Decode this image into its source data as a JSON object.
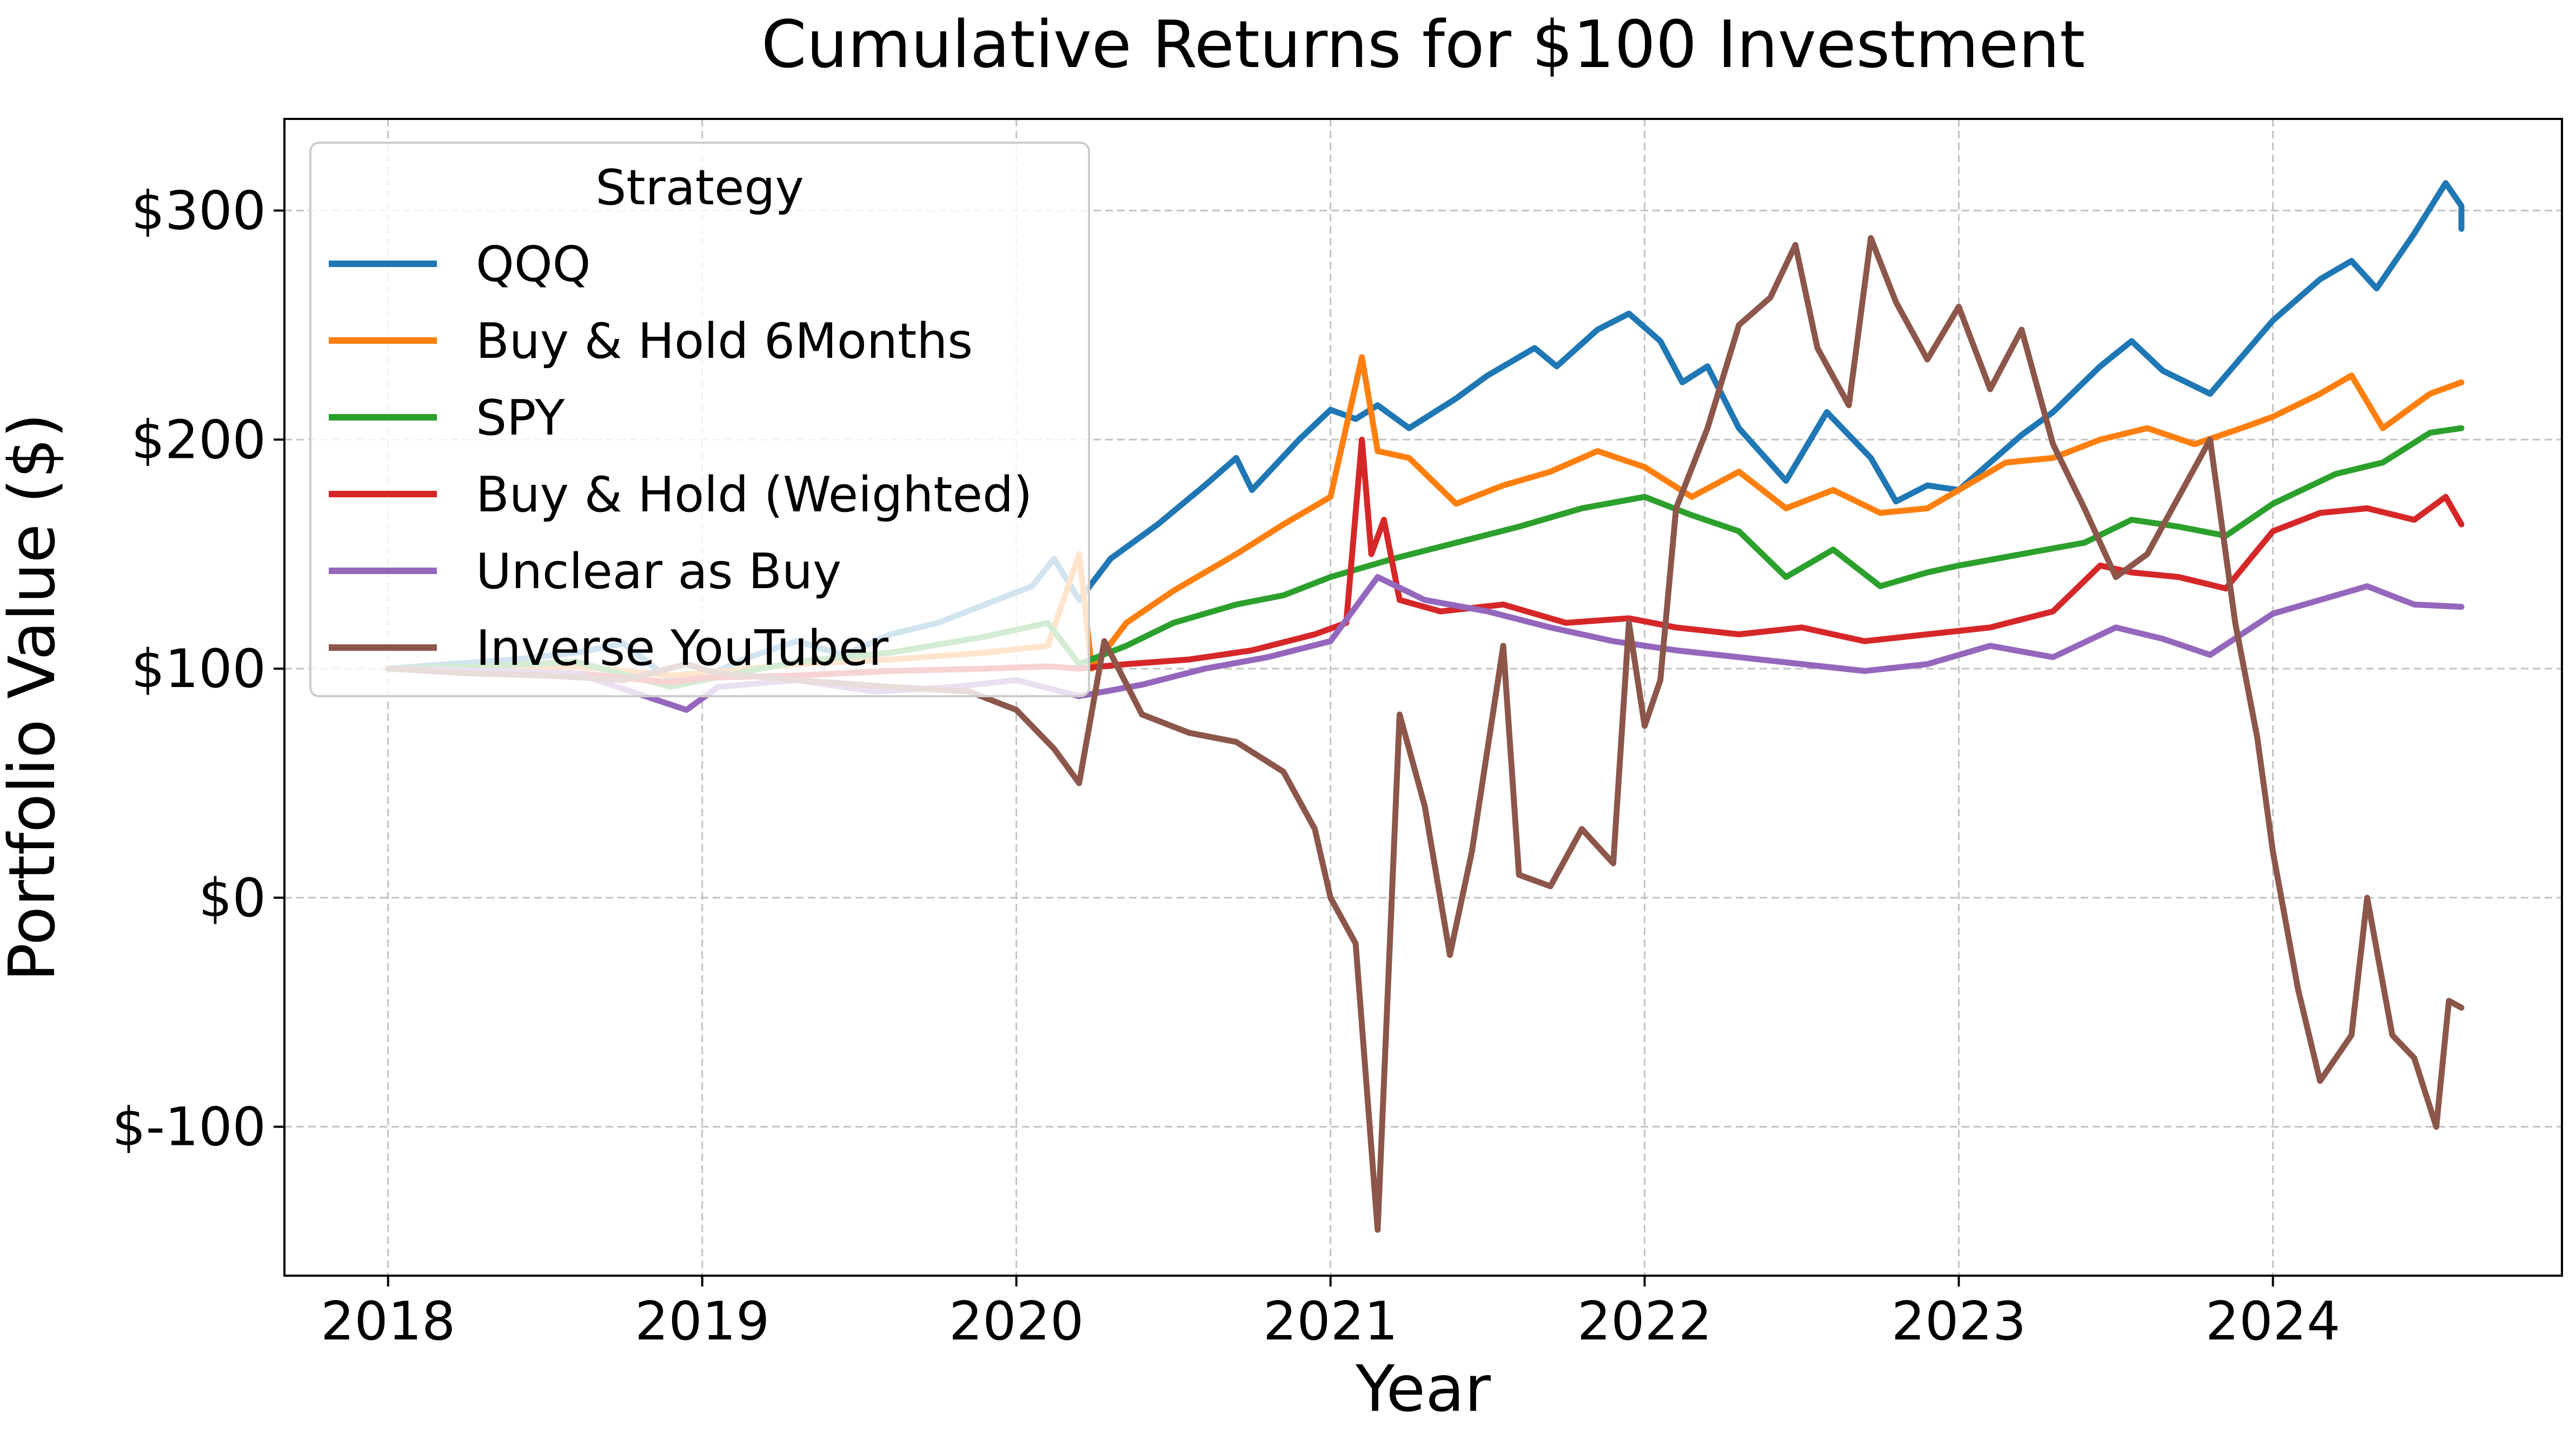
{
  "chart_data": {
    "type": "line",
    "title": "Cumulative Returns for $100 Investment",
    "xlabel": "Year",
    "ylabel": "Portfolio Value ($)",
    "xlim": [
      2017.67,
      2024.92
    ],
    "ylim": [
      -165,
      340
    ],
    "x_ticks": [
      2018,
      2019,
      2020,
      2021,
      2022,
      2023,
      2024
    ],
    "x_tick_labels": [
      "2018",
      "2019",
      "2020",
      "2021",
      "2022",
      "2023",
      "2024"
    ],
    "y_ticks": [
      -100,
      0,
      100,
      200,
      300
    ],
    "y_tick_labels": [
      "$-100",
      "$0",
      "$100",
      "$200",
      "$300"
    ],
    "grid": true,
    "legend": {
      "title": "Strategy",
      "placement": "top-left"
    },
    "series": [
      {
        "name": "QQQ",
        "color": "#1f77b4",
        "points": [
          [
            2018.0,
            100
          ],
          [
            2018.2,
            102
          ],
          [
            2018.4,
            104
          ],
          [
            2018.6,
            107
          ],
          [
            2018.75,
            111
          ],
          [
            2018.9,
            95
          ],
          [
            2019.0,
            96
          ],
          [
            2019.15,
            105
          ],
          [
            2019.3,
            112
          ],
          [
            2019.45,
            106
          ],
          [
            2019.6,
            115
          ],
          [
            2019.75,
            120
          ],
          [
            2019.9,
            128
          ],
          [
            2020.05,
            136
          ],
          [
            2020.12,
            148
          ],
          [
            2020.2,
            130
          ],
          [
            2020.3,
            148
          ],
          [
            2020.45,
            163
          ],
          [
            2020.6,
            180
          ],
          [
            2020.7,
            192
          ],
          [
            2020.75,
            178
          ],
          [
            2020.9,
            200
          ],
          [
            2021.0,
            213
          ],
          [
            2021.08,
            209
          ],
          [
            2021.15,
            215
          ],
          [
            2021.25,
            205
          ],
          [
            2021.4,
            218
          ],
          [
            2021.5,
            228
          ],
          [
            2021.65,
            240
          ],
          [
            2021.72,
            232
          ],
          [
            2021.85,
            248
          ],
          [
            2021.95,
            255
          ],
          [
            2022.05,
            243
          ],
          [
            2022.12,
            225
          ],
          [
            2022.2,
            232
          ],
          [
            2022.3,
            205
          ],
          [
            2022.45,
            182
          ],
          [
            2022.58,
            212
          ],
          [
            2022.72,
            192
          ],
          [
            2022.8,
            173
          ],
          [
            2022.9,
            180
          ],
          [
            2023.0,
            178
          ],
          [
            2023.1,
            190
          ],
          [
            2023.2,
            202
          ],
          [
            2023.3,
            212
          ],
          [
            2023.45,
            232
          ],
          [
            2023.55,
            243
          ],
          [
            2023.65,
            230
          ],
          [
            2023.8,
            220
          ],
          [
            2023.9,
            236
          ],
          [
            2024.0,
            252
          ],
          [
            2024.15,
            270
          ],
          [
            2024.25,
            278
          ],
          [
            2024.33,
            266
          ],
          [
            2024.45,
            290
          ],
          [
            2024.55,
            312
          ],
          [
            2024.6,
            302
          ],
          [
            2024.6,
            292
          ]
        ]
      },
      {
        "name": "Buy & Hold 6Months",
        "color": "#ff7f0e",
        "points": [
          [
            2018.0,
            100
          ],
          [
            2018.3,
            100
          ],
          [
            2018.6,
            101
          ],
          [
            2018.9,
            97
          ],
          [
            2019.0,
            98
          ],
          [
            2019.3,
            102
          ],
          [
            2019.6,
            104
          ],
          [
            2019.9,
            107
          ],
          [
            2020.1,
            110
          ],
          [
            2020.2,
            150
          ],
          [
            2020.24,
            100
          ],
          [
            2020.35,
            120
          ],
          [
            2020.5,
            134
          ],
          [
            2020.7,
            150
          ],
          [
            2020.85,
            163
          ],
          [
            2021.0,
            175
          ],
          [
            2021.1,
            236
          ],
          [
            2021.15,
            195
          ],
          [
            2021.25,
            192
          ],
          [
            2021.4,
            172
          ],
          [
            2021.55,
            180
          ],
          [
            2021.7,
            186
          ],
          [
            2021.85,
            195
          ],
          [
            2022.0,
            188
          ],
          [
            2022.15,
            175
          ],
          [
            2022.3,
            186
          ],
          [
            2022.45,
            170
          ],
          [
            2022.6,
            178
          ],
          [
            2022.75,
            168
          ],
          [
            2022.9,
            170
          ],
          [
            2023.0,
            178
          ],
          [
            2023.15,
            190
          ],
          [
            2023.3,
            192
          ],
          [
            2023.45,
            200
          ],
          [
            2023.6,
            205
          ],
          [
            2023.75,
            198
          ],
          [
            2023.9,
            205
          ],
          [
            2024.0,
            210
          ],
          [
            2024.15,
            220
          ],
          [
            2024.25,
            228
          ],
          [
            2024.35,
            205
          ],
          [
            2024.5,
            220
          ],
          [
            2024.6,
            225
          ]
        ]
      },
      {
        "name": "SPY",
        "color": "#2ca02c",
        "points": [
          [
            2018.0,
            100
          ],
          [
            2018.3,
            101
          ],
          [
            2018.6,
            103
          ],
          [
            2018.9,
            92
          ],
          [
            2019.0,
            95
          ],
          [
            2019.3,
            103
          ],
          [
            2019.6,
            107
          ],
          [
            2019.9,
            114
          ],
          [
            2020.1,
            120
          ],
          [
            2020.2,
            102
          ],
          [
            2020.35,
            110
          ],
          [
            2020.5,
            120
          ],
          [
            2020.7,
            128
          ],
          [
            2020.85,
            132
          ],
          [
            2021.0,
            140
          ],
          [
            2021.2,
            148
          ],
          [
            2021.4,
            155
          ],
          [
            2021.6,
            162
          ],
          [
            2021.8,
            170
          ],
          [
            2022.0,
            175
          ],
          [
            2022.15,
            167
          ],
          [
            2022.3,
            160
          ],
          [
            2022.45,
            140
          ],
          [
            2022.6,
            152
          ],
          [
            2022.75,
            136
          ],
          [
            2022.9,
            142
          ],
          [
            2023.0,
            145
          ],
          [
            2023.2,
            150
          ],
          [
            2023.4,
            155
          ],
          [
            2023.55,
            165
          ],
          [
            2023.7,
            162
          ],
          [
            2023.85,
            158
          ],
          [
            2024.0,
            172
          ],
          [
            2024.2,
            185
          ],
          [
            2024.35,
            190
          ],
          [
            2024.5,
            203
          ],
          [
            2024.6,
            205
          ]
        ]
      },
      {
        "name": "Buy & Hold (Weighted)",
        "color": "#d62728",
        "points": [
          [
            2018.0,
            100
          ],
          [
            2018.3,
            99
          ],
          [
            2018.6,
            98
          ],
          [
            2018.9,
            94
          ],
          [
            2019.0,
            96
          ],
          [
            2019.3,
            97
          ],
          [
            2019.6,
            99
          ],
          [
            2019.9,
            100
          ],
          [
            2020.1,
            101
          ],
          [
            2020.2,
            100
          ],
          [
            2020.35,
            102
          ],
          [
            2020.55,
            104
          ],
          [
            2020.75,
            108
          ],
          [
            2020.95,
            115
          ],
          [
            2021.05,
            120
          ],
          [
            2021.1,
            200
          ],
          [
            2021.13,
            150
          ],
          [
            2021.17,
            165
          ],
          [
            2021.22,
            130
          ],
          [
            2021.35,
            125
          ],
          [
            2021.55,
            128
          ],
          [
            2021.75,
            120
          ],
          [
            2021.95,
            122
          ],
          [
            2022.1,
            118
          ],
          [
            2022.3,
            115
          ],
          [
            2022.5,
            118
          ],
          [
            2022.7,
            112
          ],
          [
            2022.9,
            115
          ],
          [
            2023.1,
            118
          ],
          [
            2023.3,
            125
          ],
          [
            2023.45,
            145
          ],
          [
            2023.55,
            142
          ],
          [
            2023.7,
            140
          ],
          [
            2023.85,
            135
          ],
          [
            2024.0,
            160
          ],
          [
            2024.15,
            168
          ],
          [
            2024.3,
            170
          ],
          [
            2024.45,
            165
          ],
          [
            2024.55,
            175
          ],
          [
            2024.6,
            163
          ]
        ]
      },
      {
        "name": "Unclear as Buy",
        "color": "#9467bd",
        "points": [
          [
            2018.0,
            100
          ],
          [
            2018.3,
            99
          ],
          [
            2018.6,
            98
          ],
          [
            2018.95,
            82
          ],
          [
            2019.05,
            92
          ],
          [
            2019.3,
            95
          ],
          [
            2019.55,
            90
          ],
          [
            2019.8,
            92
          ],
          [
            2020.0,
            95
          ],
          [
            2020.2,
            88
          ],
          [
            2020.4,
            93
          ],
          [
            2020.6,
            100
          ],
          [
            2020.8,
            105
          ],
          [
            2021.0,
            112
          ],
          [
            2021.15,
            140
          ],
          [
            2021.3,
            130
          ],
          [
            2021.5,
            125
          ],
          [
            2021.7,
            118
          ],
          [
            2021.9,
            112
          ],
          [
            2022.1,
            108
          ],
          [
            2022.3,
            105
          ],
          [
            2022.5,
            102
          ],
          [
            2022.7,
            99
          ],
          [
            2022.9,
            102
          ],
          [
            2023.1,
            110
          ],
          [
            2023.3,
            105
          ],
          [
            2023.5,
            118
          ],
          [
            2023.65,
            113
          ],
          [
            2023.8,
            106
          ],
          [
            2024.0,
            124
          ],
          [
            2024.15,
            130
          ],
          [
            2024.3,
            136
          ],
          [
            2024.45,
            128
          ],
          [
            2024.6,
            127
          ]
        ]
      },
      {
        "name": "Inverse YouTuber",
        "color": "#8c564b",
        "points": [
          [
            2018.0,
            100
          ],
          [
            2018.25,
            98
          ],
          [
            2018.5,
            97
          ],
          [
            2018.75,
            95
          ],
          [
            2018.95,
            102
          ],
          [
            2019.05,
            98
          ],
          [
            2019.3,
            95
          ],
          [
            2019.6,
            92
          ],
          [
            2019.85,
            90
          ],
          [
            2020.0,
            82
          ],
          [
            2020.12,
            65
          ],
          [
            2020.2,
            50
          ],
          [
            2020.28,
            112
          ],
          [
            2020.4,
            80
          ],
          [
            2020.55,
            72
          ],
          [
            2020.7,
            68
          ],
          [
            2020.85,
            55
          ],
          [
            2020.95,
            30
          ],
          [
            2021.0,
            0
          ],
          [
            2021.08,
            -20
          ],
          [
            2021.15,
            -145
          ],
          [
            2021.22,
            80
          ],
          [
            2021.3,
            40
          ],
          [
            2021.38,
            -25
          ],
          [
            2021.45,
            20
          ],
          [
            2021.55,
            110
          ],
          [
            2021.6,
            10
          ],
          [
            2021.7,
            5
          ],
          [
            2021.8,
            30
          ],
          [
            2021.9,
            15
          ],
          [
            2021.95,
            120
          ],
          [
            2022.0,
            75
          ],
          [
            2022.05,
            95
          ],
          [
            2022.1,
            170
          ],
          [
            2022.2,
            205
          ],
          [
            2022.3,
            250
          ],
          [
            2022.4,
            262
          ],
          [
            2022.48,
            285
          ],
          [
            2022.55,
            240
          ],
          [
            2022.65,
            215
          ],
          [
            2022.72,
            288
          ],
          [
            2022.8,
            260
          ],
          [
            2022.9,
            235
          ],
          [
            2023.0,
            258
          ],
          [
            2023.1,
            222
          ],
          [
            2023.2,
            248
          ],
          [
            2023.3,
            198
          ],
          [
            2023.4,
            170
          ],
          [
            2023.5,
            140
          ],
          [
            2023.6,
            150
          ],
          [
            2023.7,
            175
          ],
          [
            2023.8,
            200
          ],
          [
            2023.88,
            120
          ],
          [
            2023.95,
            70
          ],
          [
            2024.0,
            20
          ],
          [
            2024.08,
            -40
          ],
          [
            2024.15,
            -80
          ],
          [
            2024.25,
            -60
          ],
          [
            2024.3,
            0
          ],
          [
            2024.38,
            -60
          ],
          [
            2024.45,
            -70
          ],
          [
            2024.52,
            -100
          ],
          [
            2024.56,
            -45
          ],
          [
            2024.6,
            -48
          ]
        ]
      }
    ]
  }
}
